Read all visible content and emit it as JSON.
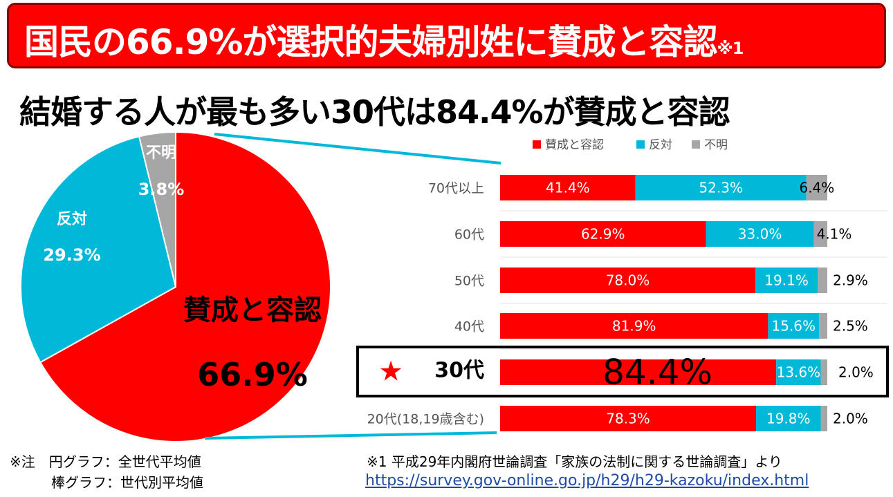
{
  "header": {
    "title": "国民の66.9%が選択的夫婦別姓に賛成と容認",
    "title_note": "※1",
    "subtitle": "結婚する人が最も多い30代は84.4%が賛成と容認"
  },
  "colors": {
    "approve": "#ff0000",
    "oppose": "#00b8d8",
    "unknown": "#a6a6a6",
    "highlight_border": "#000000"
  },
  "chart_data": [
    {
      "type": "pie",
      "labels": [
        "賛成と容認",
        "反対",
        "不明"
      ],
      "values": [
        66.9,
        29.3,
        3.8
      ],
      "value_labels": [
        "66.9%",
        "29.3%",
        "3.8%"
      ]
    },
    {
      "type": "bar",
      "orientation": "horizontal",
      "stacked": true,
      "legend": [
        "賛成と容認",
        "反対",
        "不明"
      ],
      "legend_position": "top",
      "categories": [
        "70代以上",
        "60代",
        "50代",
        "40代",
        "30代",
        "20代(18,19歳含む)"
      ],
      "highlight_category": "30代",
      "highlight_marker": "★",
      "series": [
        {
          "name": "賛成と容認",
          "values": [
            41.4,
            62.9,
            78.0,
            81.9,
            84.4,
            78.3
          ],
          "labels": [
            "41.4%",
            "62.9%",
            "78.0%",
            "81.9%",
            "84.4%",
            "78.3%"
          ]
        },
        {
          "name": "反対",
          "values": [
            52.3,
            33.0,
            19.1,
            15.6,
            13.6,
            19.8
          ],
          "labels": [
            "52.3%",
            "33.0%",
            "19.1%",
            "15.6%",
            "13.6%",
            "19.8%"
          ]
        },
        {
          "name": "不明",
          "values": [
            6.4,
            4.1,
            2.9,
            2.5,
            2.0,
            2.0
          ],
          "labels": [
            "6.4%",
            "4.1%",
            "2.9%",
            "2.5%",
            "2.0%",
            "2.0%"
          ]
        }
      ]
    }
  ],
  "notes": {
    "line1": "※注　円グラフ：全世代平均値",
    "line2": "　　　棒グラフ：世代別平均値",
    "source": "※1 平成29年内閣府世論調査「家族の法制に関する世論調査」より",
    "url": "https://survey.gov-online.go.jp/h29/h29-kazoku/index.html"
  }
}
